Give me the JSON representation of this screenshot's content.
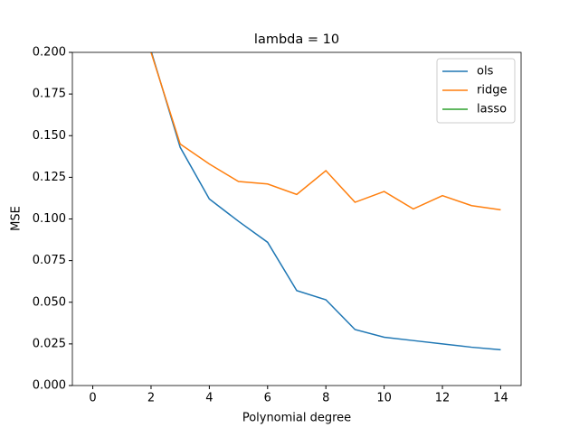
{
  "chart_data": {
    "type": "line",
    "title": "lambda = 10",
    "x_label": "Polynomial degree",
    "y_label": "MSE",
    "x": [
      2,
      3,
      4,
      5,
      6,
      7,
      8,
      9,
      10,
      11,
      12,
      13,
      14
    ],
    "series": [
      {
        "name": "ols",
        "color": "#1f77b4",
        "values": [
          0.201,
          0.143,
          0.112,
          0.0986,
          0.086,
          0.057,
          0.0515,
          0.0336,
          0.029,
          0.027,
          0.025,
          0.023,
          0.0215
        ]
      },
      {
        "name": "ridge",
        "color": "#ff7f0e",
        "values": [
          0.2,
          0.145,
          0.133,
          0.1225,
          0.121,
          0.1147,
          0.129,
          0.11,
          0.1165,
          0.106,
          0.114,
          0.108,
          0.1055
        ]
      },
      {
        "name": "lasso",
        "color": "#2ca02c",
        "values": [
          null,
          null,
          null,
          null,
          null,
          null,
          null,
          null,
          null,
          null,
          null,
          null,
          null
        ]
      }
    ],
    "xlim": [
      -0.7,
      14.7
    ],
    "xticks": [
      0,
      2,
      4,
      6,
      8,
      10,
      12,
      14
    ],
    "ylim": [
      0,
      0.2
    ],
    "yticks": [
      {
        "value": 0,
        "label": "0.000"
      },
      {
        "value": 0.025,
        "label": "0.025"
      },
      {
        "value": 0.05,
        "label": "0.050"
      },
      {
        "value": 0.075,
        "label": "0.075"
      },
      {
        "value": 0.1,
        "label": "0.100"
      },
      {
        "value": 0.125,
        "label": "0.125"
      },
      {
        "value": 0.15,
        "label": "0.150"
      },
      {
        "value": 0.175,
        "label": "0.175"
      },
      {
        "value": 0.2,
        "label": "0.200"
      }
    ],
    "legend": "upper right"
  }
}
